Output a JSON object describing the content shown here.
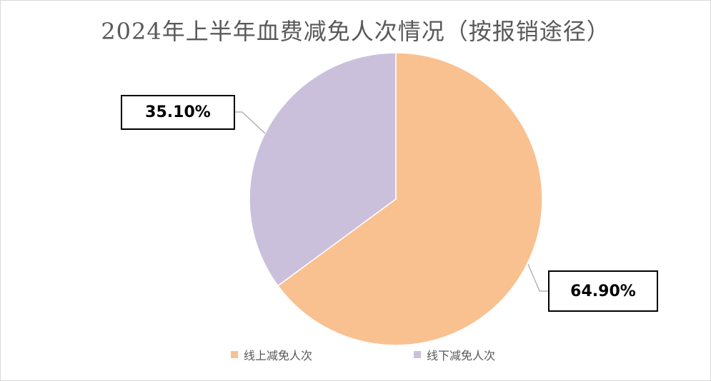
{
  "chart_data": {
    "type": "pie",
    "title": "2024年上半年血费减免人次情况（按报销途径）",
    "categories": [
      "线上减免人次",
      "线下减免人次"
    ],
    "values": [
      64.9,
      35.1
    ],
    "data_labels": [
      "64.90%",
      "35.10%"
    ],
    "colors": [
      "#F9C190",
      "#CBC0DC"
    ],
    "legend_position": "bottom"
  }
}
